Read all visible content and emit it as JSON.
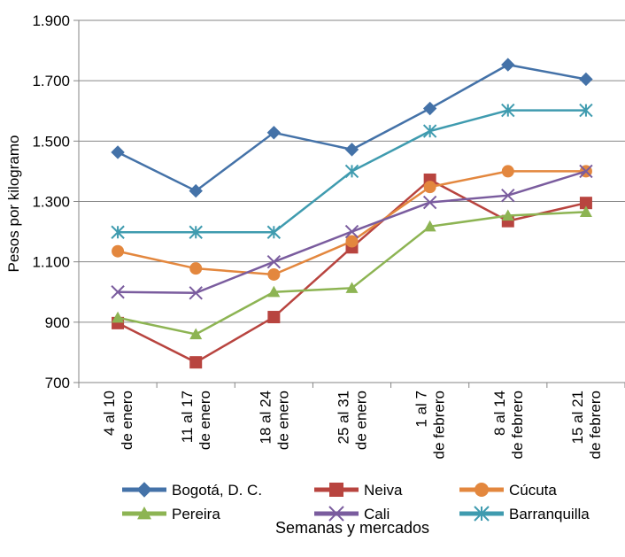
{
  "chart_data": {
    "type": "line",
    "title": "",
    "ylabel": "Pesos por kilogramo",
    "xlabel": "Semanas y mercados",
    "ylim": [
      700,
      1900
    ],
    "yticks": [
      700,
      900,
      1100,
      1300,
      1500,
      1700,
      1900
    ],
    "ytick_labels": [
      "700",
      "900",
      "1.100",
      "1.300",
      "1.500",
      "1.700",
      "1.900"
    ],
    "grid": true,
    "legend_position": "bottom",
    "categories": [
      [
        "4 al 10",
        "de enero"
      ],
      [
        "11 al 17",
        "de enero"
      ],
      [
        "18 al 24",
        "de enero"
      ],
      [
        "25 al 31",
        "de enero"
      ],
      [
        "1 al 7",
        "de febrero"
      ],
      [
        "8 al 14",
        "de febrero"
      ],
      [
        "15 al 21",
        "de febrero"
      ]
    ],
    "series": [
      {
        "name": "Bogotá, D. C.",
        "color": "#4472A8",
        "marker": "diamond",
        "values": [
          1463,
          1335,
          1528,
          1472,
          1608,
          1753,
          1705
        ]
      },
      {
        "name": "Neiva",
        "color": "#B8443F",
        "marker": "square",
        "values": [
          897,
          767,
          917,
          1148,
          1372,
          1235,
          1295
        ]
      },
      {
        "name": "Cúcuta",
        "color": "#E3873E",
        "marker": "circle",
        "values": [
          1135,
          1078,
          1058,
          1168,
          1348,
          1400,
          1400
        ]
      },
      {
        "name": "Pereira",
        "color": "#8DB453",
        "marker": "triangle",
        "values": [
          915,
          860,
          1000,
          1013,
          1217,
          1253,
          1265
        ]
      },
      {
        "name": "Cali",
        "color": "#7A5C9E",
        "marker": "x",
        "values": [
          1000,
          997,
          1100,
          1200,
          1297,
          1320,
          1400
        ]
      },
      {
        "name": "Barranquilla",
        "color": "#3F9BAF",
        "marker": "star",
        "values": [
          1198,
          1198,
          1198,
          1400,
          1533,
          1602,
          1602
        ]
      }
    ]
  }
}
